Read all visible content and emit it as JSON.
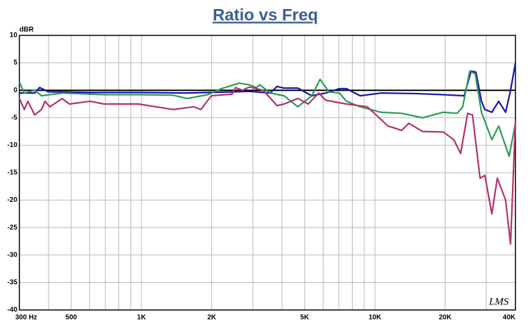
{
  "chart_data": {
    "type": "line",
    "title": "Ratio vs Freq",
    "ylabel": "dBR",
    "watermark": "LMS",
    "xscale": "log",
    "xlim": [
      300,
      40000
    ],
    "ylim": [
      -40,
      10
    ],
    "yticks": [
      10,
      5,
      0,
      -5,
      -10,
      -15,
      -20,
      -25,
      -30,
      -35,
      -40
    ],
    "xticks": [
      {
        "value": 300,
        "label": "300 Hz"
      },
      500,
      {
        "value": 1000,
        "label": "1K"
      },
      {
        "value": 2000,
        "label": "2K"
      },
      {
        "value": 5000,
        "label": "5K"
      },
      {
        "value": 10000,
        "label": "10K"
      },
      {
        "value": 20000,
        "label": "20K"
      },
      {
        "value": 40000,
        "label": "40K"
      }
    ],
    "xgrid": [
      300,
      400,
      500,
      600,
      700,
      800,
      900,
      1000,
      2000,
      3000,
      4000,
      5000,
      6000,
      7000,
      8000,
      9000,
      10000,
      20000,
      30000,
      40000
    ],
    "grid": true,
    "series": [
      {
        "name": "blue",
        "color": "#1414a8",
        "x": [
          300,
          349,
          366,
          400,
          458,
          603,
          971,
          1566,
          1923,
          2444,
          2898,
          3325,
          3559,
          3810,
          4080,
          4677,
          5362,
          6150,
          7050,
          7550,
          8650,
          10620,
          14940,
          19640,
          24120,
          25830,
          27090,
          28600,
          29590,
          31690,
          33900,
          36300,
          38110,
          40000
        ],
        "values": [
          -0.5,
          -0.5,
          0.5,
          -0.3,
          -0.3,
          -0.4,
          -0.4,
          -0.5,
          -0.4,
          -0.3,
          -0.2,
          -0.4,
          -0.5,
          0.7,
          0.4,
          0.4,
          -1,
          -0.5,
          0.3,
          0.3,
          -1,
          -0.5,
          -0.6,
          -0.8,
          -1,
          3.5,
          3.3,
          -2,
          -3.5,
          -4,
          -2,
          -4,
          0,
          5
        ]
      },
      {
        "name": "green",
        "color": "#2a9a52",
        "x": [
          300,
          315,
          349,
          373,
          458,
          691,
          971,
          1368,
          1566,
          1923,
          2204,
          2617,
          2898,
          3105,
          3214,
          3325,
          3559,
          4080,
          4677,
          5362,
          5822,
          6360,
          7050,
          7550,
          8650,
          10620,
          13040,
          16000,
          19640,
          22510,
          23780,
          25480,
          26910,
          28600,
          31690,
          33900,
          37580,
          40000
        ],
        "values": [
          1.5,
          -0.5,
          0,
          -1,
          -0.5,
          -0.8,
          -0.8,
          -0.9,
          -1.5,
          -0.8,
          0.3,
          1.3,
          1,
          0.5,
          1,
          0.5,
          -0.5,
          -1,
          -3,
          -1,
          2,
          -0.3,
          -0.5,
          -2,
          -3,
          -4,
          -4.2,
          -5,
          -4,
          -4.2,
          -3,
          3.5,
          3,
          -4,
          -9,
          -6.5,
          -12,
          -6
        ]
      },
      {
        "name": "magenta",
        "color": "#b3306c",
        "x": [
          300,
          315,
          326,
          349,
          373,
          386,
          405,
          458,
          491,
          603,
          691,
          971,
          1368,
          1678,
          1796,
          1991,
          2444,
          2529,
          2707,
          2898,
          3325,
          3810,
          4080,
          4677,
          5181,
          5742,
          6150,
          7550,
          9270,
          11380,
          13040,
          13960,
          16000,
          19640,
          21780,
          23290,
          24960,
          26190,
          28210,
          29590,
          31690,
          33450,
          36300,
          38110,
          40000
        ],
        "values": [
          -1.5,
          -3.5,
          -2,
          -4.5,
          -3.5,
          -2,
          -3,
          -1.5,
          -2.5,
          -2,
          -2.5,
          -2.5,
          -3.5,
          -3,
          -3.5,
          -1,
          -0.7,
          0.5,
          0,
          0.6,
          0,
          -2.8,
          -2.5,
          -1.5,
          -2.5,
          -0.5,
          -1.8,
          -2.5,
          -3,
          -6.5,
          -7.3,
          -6,
          -7.5,
          -7.6,
          -9,
          -11.5,
          -4.2,
          -4.5,
          -16,
          -15.5,
          -22.5,
          -16,
          -20,
          -28,
          -5.5
        ]
      }
    ]
  }
}
